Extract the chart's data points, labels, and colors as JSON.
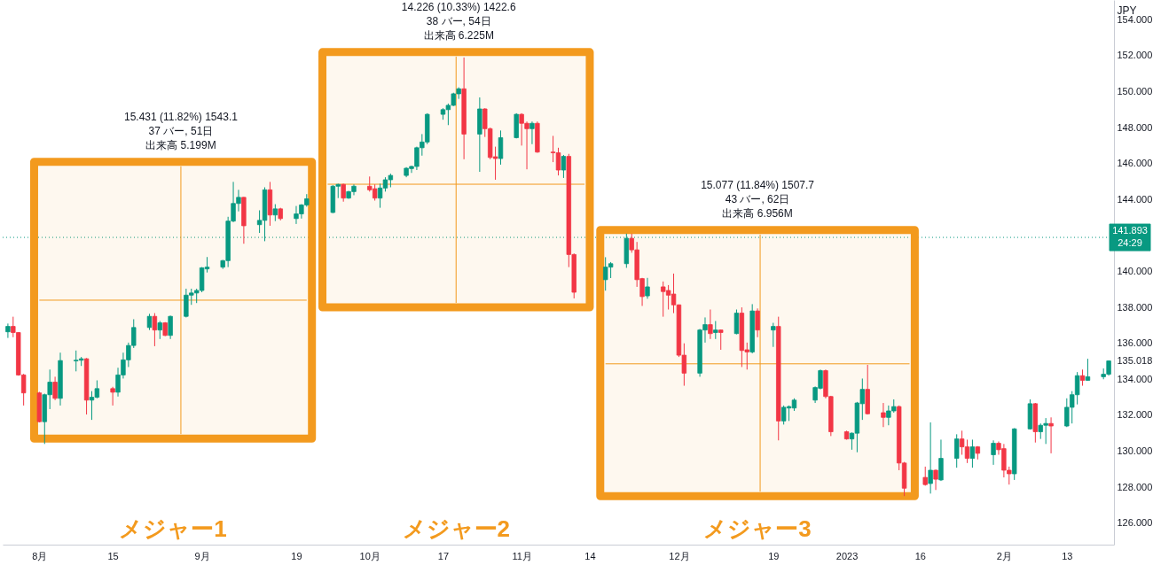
{
  "chart_data": {
    "type": "candlestick",
    "x": [
      "2022-07-26",
      "2022-07-27",
      "2022-07-28",
      "2022-07-29",
      "2022-08-01",
      "2022-08-02",
      "2022-08-03",
      "2022-08-04",
      "2022-08-05",
      "2022-08-08",
      "2022-08-09",
      "2022-08-10",
      "2022-08-11",
      "2022-08-12",
      "2022-08-15",
      "2022-08-16",
      "2022-08-17",
      "2022-08-18",
      "2022-08-19",
      "2022-08-22",
      "2022-08-23",
      "2022-08-24",
      "2022-08-25",
      "2022-08-26",
      "2022-08-29",
      "2022-08-30",
      "2022-08-31",
      "2022-09-01",
      "2022-09-02",
      "2022-09-05",
      "2022-09-06",
      "2022-09-07",
      "2022-09-08",
      "2022-09-09",
      "2022-09-12",
      "2022-09-13",
      "2022-09-14",
      "2022-09-15",
      "2022-09-16",
      "2022-09-19",
      "2022-09-20",
      "2022-09-21",
      "2022-09-26",
      "2022-09-27",
      "2022-09-28",
      "2022-09-29",
      "2022-09-30",
      "2022-10-03",
      "2022-10-04",
      "2022-10-05",
      "2022-10-06",
      "2022-10-07",
      "2022-10-10",
      "2022-10-11",
      "2022-10-12",
      "2022-10-13",
      "2022-10-14",
      "2022-10-17",
      "2022-10-18",
      "2022-10-19",
      "2022-10-20",
      "2022-10-21",
      "2022-10-24",
      "2022-10-25",
      "2022-10-26",
      "2022-10-27",
      "2022-10-28",
      "2022-10-31",
      "2022-11-01",
      "2022-11-02",
      "2022-11-03",
      "2022-11-04",
      "2022-11-07",
      "2022-11-08",
      "2022-11-09",
      "2022-11-10",
      "2022-11-11",
      "2022-11-17",
      "2022-11-18",
      "2022-11-21",
      "2022-11-22",
      "2022-11-23",
      "2022-11-24",
      "2022-11-25",
      "2022-11-28",
      "2022-11-29",
      "2022-11-30",
      "2022-12-01",
      "2022-12-02",
      "2022-12-05",
      "2022-12-06",
      "2022-12-07",
      "2022-12-08",
      "2022-12-09",
      "2022-12-12",
      "2022-12-13",
      "2022-12-14",
      "2022-12-15",
      "2022-12-16",
      "2022-12-19",
      "2022-12-20",
      "2022-12-21",
      "2022-12-22",
      "2022-12-23",
      "2022-12-27",
      "2022-12-28",
      "2022-12-29",
      "2022-12-30",
      "2023-01-02",
      "2023-01-03",
      "2023-01-04",
      "2023-01-05",
      "2023-01-06",
      "2023-01-09",
      "2023-01-10",
      "2023-01-11",
      "2023-01-12",
      "2023-01-13",
      "2023-01-17",
      "2023-01-18",
      "2023-01-19",
      "2023-01-20",
      "2023-01-23",
      "2023-01-24",
      "2023-01-25",
      "2023-01-26",
      "2023-01-27",
      "2023-01-30",
      "2023-01-31",
      "2023-02-01",
      "2023-02-02",
      "2023-02-03",
      "2023-02-06",
      "2023-02-07",
      "2023-02-08",
      "2023-02-09",
      "2023-02-10",
      "2023-02-13",
      "2023-02-14",
      "2023-02-15",
      "2023-02-16",
      "2023-02-17",
      "2023-02-20",
      "2023-02-21"
    ],
    "ohlc": [
      [
        136.64,
        137.1,
        136.3,
        136.94
      ],
      [
        136.94,
        137.48,
        136.34,
        136.6
      ],
      [
        136.6,
        136.62,
        134.2,
        134.24
      ],
      [
        134.24,
        134.3,
        132.54,
        133.24
      ],
      [
        133.24,
        133.3,
        131.6,
        131.64
      ],
      [
        131.64,
        133.2,
        130.4,
        133.14
      ],
      [
        133.14,
        134.54,
        132.34,
        133.84
      ],
      [
        133.84,
        134.14,
        132.84,
        132.94
      ],
      [
        132.94,
        135.48,
        132.54,
        135.04
      ],
      [
        135.02,
        135.6,
        134.44,
        135.06
      ],
      [
        135.06,
        135.24,
        134.74,
        135.14
      ],
      [
        135.14,
        135.18,
        132.04,
        132.84
      ],
      [
        132.84,
        133.34,
        131.74,
        133.0
      ],
      [
        133.0,
        133.94,
        132.94,
        133.48
      ],
      [
        133.48,
        133.58,
        132.54,
        133.28
      ],
      [
        133.28,
        134.64,
        133.04,
        134.24
      ],
      [
        134.24,
        135.48,
        134.04,
        135.08
      ],
      [
        135.08,
        136.04,
        134.68,
        135.88
      ],
      [
        135.88,
        137.34,
        135.74,
        136.88
      ],
      [
        136.88,
        137.64,
        136.74,
        137.5
      ],
      [
        137.5,
        137.68,
        135.84,
        136.74
      ],
      [
        136.74,
        137.24,
        136.24,
        137.14
      ],
      [
        137.14,
        137.18,
        136.4,
        136.44
      ],
      [
        136.44,
        137.54,
        136.24,
        137.5
      ],
      [
        137.5,
        139.04,
        137.44,
        138.68
      ],
      [
        138.68,
        139.04,
        138.14,
        138.8
      ],
      [
        138.8,
        139.04,
        138.24,
        138.94
      ],
      [
        138.94,
        140.24,
        138.84,
        140.2
      ],
      [
        140.14,
        140.8,
        139.94,
        140.24
      ],
      [
        140.24,
        140.64,
        140.14,
        140.6
      ],
      [
        140.6,
        143.04,
        140.24,
        142.8
      ],
      [
        142.8,
        144.98,
        142.74,
        143.78
      ],
      [
        143.78,
        144.54,
        143.34,
        144.12
      ],
      [
        144.12,
        144.14,
        141.54,
        142.54
      ],
      [
        142.6,
        143.4,
        142.14,
        142.84
      ],
      [
        142.84,
        144.68,
        141.68,
        144.54
      ],
      [
        144.54,
        144.98,
        142.54,
        143.14
      ],
      [
        143.14,
        143.74,
        142.8,
        143.48
      ],
      [
        143.48,
        143.54,
        142.84,
        142.94
      ],
      [
        142.94,
        143.64,
        142.64,
        143.2
      ],
      [
        143.2,
        143.74,
        142.94,
        143.7
      ],
      [
        143.7,
        144.3,
        143.6,
        144.04
      ],
      [
        143.28,
        144.8,
        143.24,
        144.74
      ],
      [
        144.74,
        144.88,
        144.08,
        144.84
      ],
      [
        144.84,
        144.88,
        143.88,
        144.08
      ],
      [
        144.08,
        144.48,
        144.04,
        144.44
      ],
      [
        144.44,
        144.84,
        144.24,
        144.74
      ],
      [
        144.74,
        145.28,
        144.44,
        144.54
      ],
      [
        144.6,
        144.84,
        143.94,
        144.08
      ],
      [
        144.08,
        144.88,
        143.54,
        144.64
      ],
      [
        144.64,
        145.24,
        144.44,
        145.1
      ],
      [
        145.1,
        145.44,
        144.68,
        145.34
      ],
      [
        145.34,
        145.8,
        145.24,
        145.74
      ],
      [
        145.72,
        145.88,
        145.48,
        145.84
      ],
      [
        145.84,
        146.94,
        145.64,
        146.88
      ],
      [
        146.88,
        147.64,
        146.44,
        147.2
      ],
      [
        147.2,
        148.8,
        147.08,
        148.74
      ],
      [
        148.74,
        149.08,
        148.44,
        149.0
      ],
      [
        149.0,
        149.34,
        148.14,
        149.24
      ],
      [
        149.24,
        149.94,
        149.2,
        149.88
      ],
      [
        149.88,
        150.24,
        149.6,
        150.16
      ],
      [
        150.16,
        151.9,
        146.24,
        147.64
      ],
      [
        147.64,
        149.68,
        145.54,
        149.04
      ],
      [
        149.04,
        149.08,
        147.48,
        147.94
      ],
      [
        147.94,
        148.0,
        146.24,
        146.34
      ],
      [
        146.38,
        146.94,
        145.1,
        146.28
      ],
      [
        146.28,
        147.84,
        145.94,
        147.44
      ],
      [
        147.44,
        148.8,
        147.4,
        148.74
      ],
      [
        148.74,
        148.8,
        147.0,
        148.24
      ],
      [
        148.24,
        148.34,
        145.68,
        147.94
      ],
      [
        147.94,
        148.34,
        147.08,
        148.24
      ],
      [
        148.24,
        148.34,
        146.6,
        146.64
      ],
      [
        146.64,
        147.54,
        146.08,
        146.6
      ],
      [
        146.6,
        146.88,
        145.34,
        145.64
      ],
      [
        145.64,
        146.48,
        145.2,
        146.4
      ],
      [
        146.4,
        146.54,
        140.24,
        140.94
      ],
      [
        140.94,
        141.0,
        138.5,
        138.84
      ],
      [
        139.54,
        140.79,
        138.93,
        140.24
      ],
      [
        140.24,
        140.52,
        139.63,
        140.43
      ],
      [
        140.43,
        142.1,
        140.2,
        141.84
      ],
      [
        141.84,
        142.1,
        141.04,
        141.2
      ],
      [
        141.2,
        141.64,
        139.14,
        139.54
      ],
      [
        139.6,
        139.64,
        138.08,
        138.6
      ],
      [
        138.64,
        139.64,
        138.48,
        139.14
      ],
      [
        139.14,
        139.44,
        137.48,
        138.88
      ],
      [
        138.94,
        139.24,
        137.88,
        138.68
      ],
      [
        138.74,
        139.88,
        137.68,
        138.14
      ],
      [
        138.14,
        138.16,
        135.24,
        135.34
      ],
      [
        135.34,
        136.0,
        133.64,
        134.34
      ],
      [
        134.34,
        136.8,
        134.14,
        136.74
      ],
      [
        136.74,
        137.44,
        136.04,
        137.04
      ],
      [
        137.04,
        137.88,
        136.24,
        136.54
      ],
      [
        136.6,
        137.24,
        136.24,
        136.74
      ],
      [
        136.74,
        136.76,
        135.64,
        136.6
      ],
      [
        136.54,
        137.88,
        136.5,
        137.68
      ],
      [
        137.68,
        138.0,
        134.68,
        135.6
      ],
      [
        135.64,
        136.04,
        134.54,
        135.52
      ],
      [
        135.52,
        138.18,
        135.44,
        137.8
      ],
      [
        137.8,
        137.94,
        136.34,
        136.74
      ],
      [
        136.74,
        137.14,
        135.8,
        136.94
      ],
      [
        136.94,
        137.48,
        130.6,
        131.68
      ],
      [
        131.68,
        132.54,
        131.48,
        132.44
      ],
      [
        132.4,
        132.54,
        131.68,
        132.48
      ],
      [
        132.4,
        132.94,
        132.24,
        132.84
      ],
      [
        132.84,
        133.6,
        132.68,
        133.54
      ],
      [
        133.5,
        134.54,
        133.44,
        134.48
      ],
      [
        134.48,
        134.54,
        132.94,
        133.04
      ],
      [
        133.04,
        133.08,
        130.84,
        131.08
      ],
      [
        131.08,
        131.14,
        130.64,
        130.68
      ],
      [
        130.68,
        131.04,
        130.08,
        131.0
      ],
      [
        131.0,
        132.74,
        129.94,
        132.68
      ],
      [
        132.64,
        134.04,
        131.74,
        133.44
      ],
      [
        133.44,
        134.8,
        132.04,
        132.08
      ],
      [
        132.14,
        132.68,
        131.34,
        131.88
      ],
      [
        131.88,
        132.54,
        131.44,
        132.24
      ],
      [
        132.24,
        132.88,
        132.14,
        132.48
      ],
      [
        132.48,
        132.54,
        128.94,
        129.34
      ],
      [
        129.34,
        129.4,
        127.5,
        127.94
      ],
      [
        128.54,
        129.14,
        128.08,
        128.14
      ],
      [
        128.2,
        131.6,
        127.64,
        128.94
      ],
      [
        128.94,
        128.98,
        127.84,
        128.44
      ],
      [
        128.4,
        130.64,
        128.34,
        129.6
      ],
      [
        129.6,
        130.94,
        129.08,
        130.68
      ],
      [
        130.68,
        131.14,
        129.8,
        130.24
      ],
      [
        130.24,
        130.64,
        129.34,
        129.6
      ],
      [
        129.6,
        130.64,
        129.08,
        130.24
      ],
      [
        130.24,
        130.28,
        129.54,
        129.88
      ],
      [
        129.8,
        130.6,
        129.24,
        130.44
      ],
      [
        130.44,
        130.54,
        129.8,
        130.08
      ],
      [
        130.14,
        130.4,
        128.54,
        128.94
      ],
      [
        128.94,
        129.14,
        128.14,
        128.74
      ],
      [
        128.74,
        131.28,
        128.4,
        131.24
      ],
      [
        131.24,
        132.88,
        131.2,
        132.64
      ],
      [
        132.64,
        132.68,
        130.48,
        131.08
      ],
      [
        131.08,
        131.54,
        130.68,
        131.44
      ],
      [
        131.44,
        131.84,
        130.4,
        131.54
      ],
      [
        131.54,
        131.88,
        129.88,
        131.4
      ],
      [
        131.4,
        132.94,
        131.34,
        132.44
      ],
      [
        132.44,
        133.34,
        131.54,
        133.14
      ],
      [
        133.14,
        134.4,
        132.6,
        134.2
      ],
      [
        134.2,
        134.54,
        133.64,
        133.94
      ],
      [
        133.94,
        135.14,
        133.92,
        134.14
      ],
      [
        134.14,
        134.6,
        134.0,
        134.28
      ],
      [
        134.28,
        135.05,
        134.2,
        135.02
      ]
    ],
    "colors": [
      "#089981",
      "#f23645",
      "#f23645",
      "#f23645",
      "#f23645",
      "#089981",
      "#089981",
      "#f23645",
      "#089981",
      "#089981",
      "#089981",
      "#f23645",
      "#089981",
      "#089981",
      "#f23645",
      "#089981",
      "#089981",
      "#089981",
      "#089981",
      "#089981",
      "#f23645",
      "#089981",
      "#f23645",
      "#089981",
      "#089981",
      "#089981",
      "#089981",
      "#089981",
      "#089981",
      "#089981",
      "#089981",
      "#089981",
      "#089981",
      "#f23645",
      "#089981",
      "#089981",
      "#f23645",
      "#089981",
      "#f23645",
      "#089981",
      "#089981",
      "#089981",
      "#089981",
      "#089981",
      "#f23645",
      "#089981",
      "#089981",
      "#f23645",
      "#f23645",
      "#089981",
      "#089981",
      "#089981",
      "#089981",
      "#089981",
      "#089981",
      "#089981",
      "#089981",
      "#089981",
      "#089981",
      "#089981",
      "#089981",
      "#f23645",
      "#089981",
      "#f23645",
      "#f23645",
      "#f23645",
      "#089981",
      "#089981",
      "#f23645",
      "#f23645",
      "#089981",
      "#f23645",
      "#f23645",
      "#f23645",
      "#089981",
      "#f23645",
      "#f23645",
      "#089981",
      "#089981",
      "#089981",
      "#f23645",
      "#f23645",
      "#f23645",
      "#089981",
      "#f23645",
      "#f23645",
      "#f23645",
      "#f23645",
      "#f23645",
      "#089981",
      "#089981",
      "#f23645",
      "#089981",
      "#f23645",
      "#089981",
      "#f23645",
      "#f23645",
      "#089981",
      "#f23645",
      "#089981",
      "#f23645",
      "#089981",
      "#089981",
      "#089981",
      "#089981",
      "#089981",
      "#f23645",
      "#f23645",
      "#f23645",
      "#089981",
      "#089981",
      "#089981",
      "#f23645",
      "#f23645",
      "#089981",
      "#089981",
      "#f23645",
      "#f23645",
      "#f23645",
      "#089981",
      "#f23645",
      "#089981",
      "#089981",
      "#f23645",
      "#f23645",
      "#089981",
      "#f23645",
      "#089981",
      "#f23645",
      "#f23645",
      "#f23645",
      "#089981",
      "#089981",
      "#f23645",
      "#089981",
      "#089981",
      "#f23645",
      "#089981",
      "#089981",
      "#089981",
      "#f23645",
      "#089981",
      "#089981",
      "#089981"
    ],
    "xlim": [
      "2022-07-25",
      "2023-02-22"
    ],
    "xticks": [
      {
        "value": "2022-08-01",
        "label": "8月"
      },
      {
        "value": "2022-08-15",
        "label": "15"
      },
      {
        "value": "2022-09-01",
        "label": "9月"
      },
      {
        "value": "2022-09-19",
        "label": "19"
      },
      {
        "value": "2022-10-03",
        "label": "10月"
      },
      {
        "value": "2022-10-17",
        "label": "17"
      },
      {
        "value": "2022-11-01",
        "label": "11月"
      },
      {
        "value": "2022-11-14",
        "label": "14"
      },
      {
        "value": "2022-12-01",
        "label": "12月"
      },
      {
        "value": "2022-12-19",
        "label": "19"
      },
      {
        "value": "2023-01-02",
        "label": "2023"
      },
      {
        "value": "2023-01-16",
        "label": "16"
      },
      {
        "value": "2023-02-01",
        "label": "2月"
      },
      {
        "value": "2023-02-13",
        "label": "13"
      }
    ],
    "ylim": [
      124.8,
      155.1
    ],
    "yticks": [
      {
        "value": 126,
        "label": "126.000"
      },
      {
        "value": 128,
        "label": "128.000"
      },
      {
        "value": 130,
        "label": "130.000"
      },
      {
        "value": 132,
        "label": "132.000"
      },
      {
        "value": 134,
        "label": "134.000"
      },
      {
        "value": 135.018,
        "label": "135.018"
      },
      {
        "value": 136,
        "label": "136.000"
      },
      {
        "value": 138,
        "label": "138.000"
      },
      {
        "value": 140,
        "label": "140.000"
      },
      {
        "value": 144,
        "label": "144.000"
      },
      {
        "value": 146,
        "label": "146.000"
      },
      {
        "value": 148,
        "label": "148.000"
      },
      {
        "value": 150,
        "label": "150.000"
      },
      {
        "value": 152,
        "label": "152.000"
      },
      {
        "value": 154,
        "label": "154.000"
      }
    ],
    "ylabel": "JPY",
    "ref_lines": [
      {
        "axis": "y",
        "value": 141.893,
        "label": "141.893\n24:29",
        "color": "#089981",
        "line_style": "dotted"
      }
    ],
    "series": [
      {
        "type": "line",
        "color": "#f39a1e",
        "x": [
          "2022-07-31",
          "2022-08-01",
          "2022-09-21",
          "2022-09-22"
        ],
        "values": [
          null,
          138.4,
          138.4,
          null
        ],
        "lower": [
          130.7,
          130.7,
          130.7,
          130.7
        ],
        "upper": [
          146.1,
          146.1,
          146.1,
          146.1
        ]
      },
      {
        "type": "line",
        "color": "#f39a1e",
        "x": [
          "2022-08-28",
          "2022-08-28"
        ],
        "values": [
          130.95,
          145.85
        ]
      },
      {
        "type": "line",
        "color": "#f39a1e",
        "x": [
          "2022-09-24",
          "2022-09-25",
          "2022-11-13",
          "2022-11-14"
        ],
        "values": [
          null,
          144.85,
          144.85,
          null
        ],
        "lower": [
          138.0,
          138.0,
          138.0,
          138.0
        ],
        "upper": [
          152.2,
          152.2,
          152.2,
          152.2
        ]
      },
      {
        "type": "line",
        "color": "#f39a1e",
        "x": [
          "2022-10-19T12:00",
          "2022-10-19T12:00"
        ],
        "values": [
          138.25,
          151.95
        ]
      },
      {
        "type": "line",
        "color": "#f39a1e",
        "x": [
          "2022-11-16",
          "2022-11-17",
          "2023-01-14",
          "2023-01-15"
        ],
        "values": [
          null,
          134.86,
          134.86,
          null
        ],
        "lower": [
          127.5,
          127.5,
          127.5,
          127.5
        ],
        "upper": [
          142.3,
          142.3,
          142.3,
          142.3
        ]
      },
      {
        "type": "line",
        "color": "#f39a1e",
        "x": [
          "2022-12-16T12:00",
          "2022-12-16T12:00"
        ],
        "values": [
          127.75,
          142.05
        ]
      }
    ],
    "annotations": [
      {
        "text": "15.431 (11.82%) 1543.1\n37 バー, 51日",
        "x": "2022-08-28",
        "y": 146.1
      },
      {
        "text": "出来高 5.199M",
        "x": "2022-08-28",
        "y": 146.1
      },
      {
        "text": "14.226 (10.33%) 1422.6\n38 バー, 54日",
        "x": "2022-10-20",
        "y": 152.2
      },
      {
        "text": "出来高 6.225M",
        "x": "2022-10-20",
        "y": 152.2
      },
      {
        "text": "15.077 (11.84%) 1507.7\n43 バー, 62日",
        "x": "2022-12-16",
        "y": 142.3
      },
      {
        "text": "出来高 6.956M",
        "x": "2022-12-16",
        "y": 142.3
      },
      "メジャー1",
      "メジャー2",
      "メジャー3"
    ]
  }
}
